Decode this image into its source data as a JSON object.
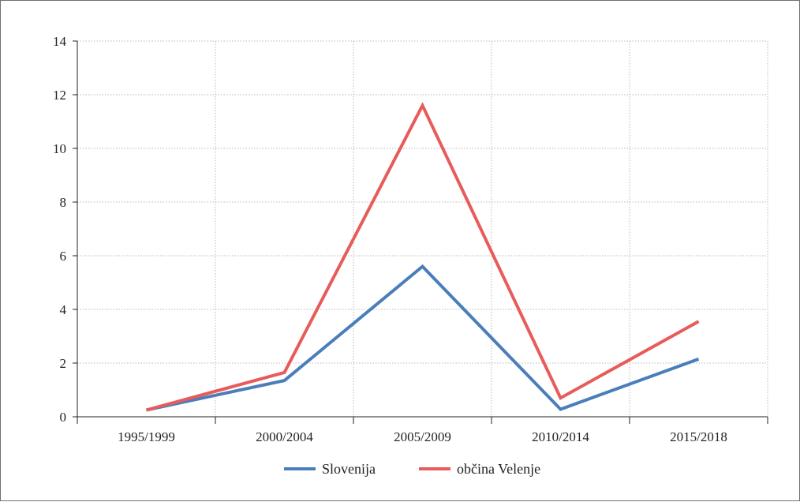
{
  "chart_data": {
    "type": "line",
    "categories": [
      "1995/1999",
      "2000/2004",
      "2005/2009",
      "2010/2014",
      "2015/2018"
    ],
    "series": [
      {
        "name": "Slovenija",
        "color": "#4A7EBB",
        "values": [
          0.25,
          1.35,
          5.6,
          0.28,
          2.15
        ]
      },
      {
        "name": "občina Velenje",
        "color": "#E85B5B",
        "values": [
          0.25,
          1.65,
          11.6,
          0.7,
          3.55
        ]
      }
    ],
    "title": "",
    "xlabel": "",
    "ylabel": "",
    "ylim": [
      0,
      14
    ],
    "yticks": [
      0,
      2,
      4,
      6,
      8,
      10,
      12,
      14
    ],
    "grid": true,
    "legend_position": "bottom-center"
  }
}
